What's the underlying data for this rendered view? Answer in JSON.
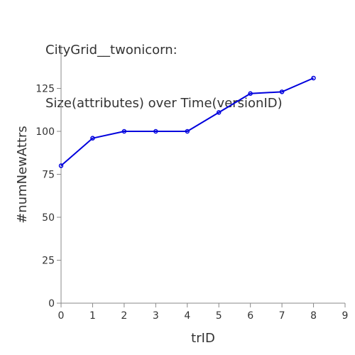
{
  "chart_data": {
    "type": "line",
    "title": [
      "CityGrid__twonicorn:",
      "Size(attributes) over Time(versionID)"
    ],
    "xlabel": "trID",
    "ylabel": "#numNewAttrs",
    "xlim": [
      0,
      9
    ],
    "ylim": [
      0,
      150
    ],
    "x_ticks": [
      0,
      1,
      2,
      3,
      4,
      5,
      6,
      7,
      8,
      9
    ],
    "y_ticks": [
      0,
      25,
      50,
      75,
      100,
      125
    ],
    "grid": false,
    "legend": "none",
    "series": [
      {
        "color": "#0000dd",
        "points": [
          {
            "x": 0,
            "y": 80
          },
          {
            "x": 1,
            "y": 96
          },
          {
            "x": 2,
            "y": 100
          },
          {
            "x": 3,
            "y": 100
          },
          {
            "x": 4,
            "y": 100
          },
          {
            "x": 5,
            "y": 111
          },
          {
            "x": 6,
            "y": 122
          },
          {
            "x": 7,
            "y": 123
          },
          {
            "x": 8,
            "y": 131
          }
        ]
      }
    ]
  }
}
